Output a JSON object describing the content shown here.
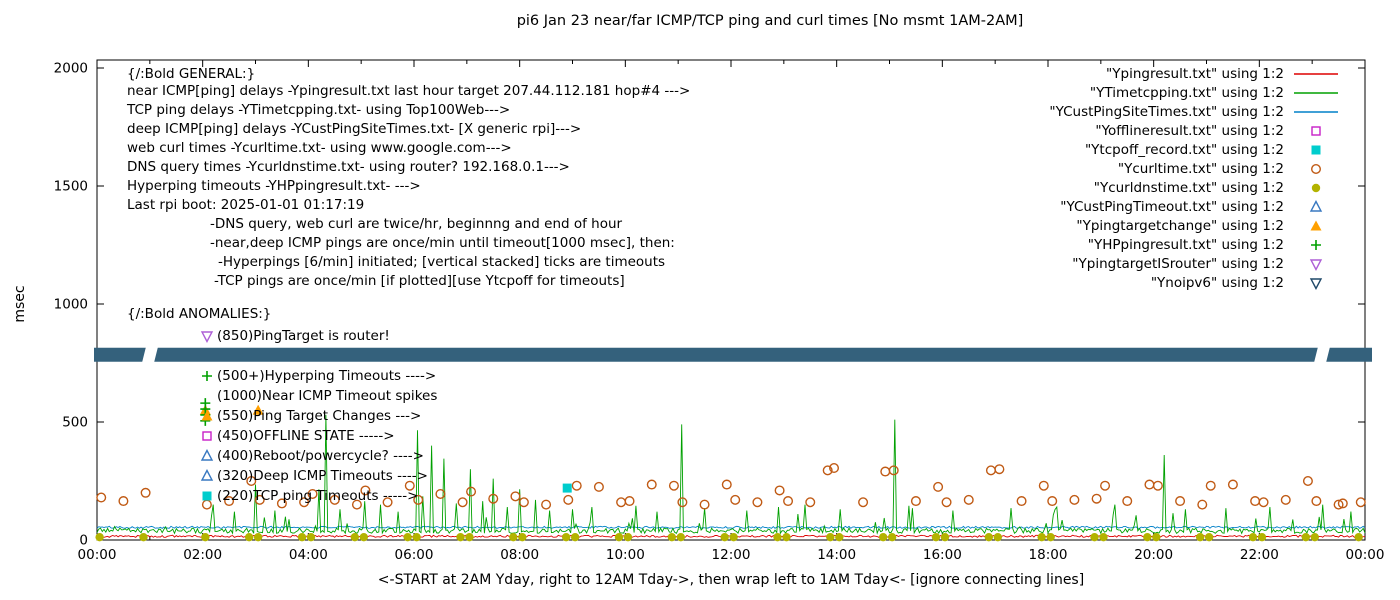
{
  "title": "pi6 Jan 23  near/far ICMP/TCP ping and curl times [No msmt 1AM-2AM]",
  "axes": {
    "ylabel": "msec",
    "xlabel": "<-START at 2AM Yday, right to 12AM Tday->, then wrap left to 1AM Tday<- [ignore connecting lines]"
  },
  "legend": [
    {
      "label": "\"Ypingresult.txt\" using 1:2",
      "sample": "line",
      "color": "#dd0000"
    },
    {
      "label": "\"YTimetcpping.txt\" using 1:2",
      "sample": "line",
      "color": "#00a000"
    },
    {
      "label": "\"YCustPingSiteTimes.txt\" using 1:2",
      "sample": "line",
      "color": "#0080c8"
    },
    {
      "label": "\"Yofflineresult.txt\" using 1:2",
      "sample": "square-open",
      "color": "#c820c8"
    },
    {
      "label": "\"Ytcpoff_record.txt\" using 1:2",
      "sample": "square-filled",
      "color": "#00cdcd"
    },
    {
      "label": "\"Ycurltime.txt\" using 1:2",
      "sample": "circle-open",
      "color": "#c05a14"
    },
    {
      "label": "\"Ycurldnstime.txt\" using 1:2",
      "sample": "circle-filled",
      "color": "#b3b300"
    },
    {
      "label": "\"YCustPingTimeout.txt\" using 1:2",
      "sample": "triangle-open",
      "color": "#3878c0"
    },
    {
      "label": "\"Ypingtargetchange\" using 1:2",
      "sample": "triangle-filled",
      "color": "#ffa000"
    },
    {
      "label": "\"YHPpingresult.txt\" using 1:2",
      "sample": "plus",
      "color": "#00a000"
    },
    {
      "label": "\"YpingtargetISrouter\" using 1:2",
      "sample": "nabla-open",
      "color": "#ad5fd6"
    },
    {
      "label": "\"Ynoipv6\" using 1:2",
      "sample": "nabla-open",
      "color": "#1f4868"
    }
  ],
  "general_notes": {
    "header": "{/:Bold GENERAL:}",
    "lines": [
      {
        "text": "near ICMP[ping] delays -Ypingresult.txt last hour target 207.44.112.181 hop#4 --->",
        "indent": 0
      },
      {
        "text": "TCP ping delays -YTimetcpping.txt- using Top100Web--->",
        "indent": 0
      },
      {
        "text": "deep ICMP[ping] delays -YCustPingSiteTimes.txt- [X generic rpi]--->",
        "indent": 0
      },
      {
        "text": "web curl times -Ycurltime.txt- using www.google.com--->",
        "indent": 0
      },
      {
        "text": "DNS query times -Ycurldnstime.txt- using router? 192.168.0.1--->",
        "indent": 0
      },
      {
        "text": "Hyperping timeouts -YHPpingresult.txt- --->",
        "indent": 0
      },
      {
        "text": "Last rpi boot: 2025-01-01 01:17:19",
        "indent": 0
      },
      {
        "text": "-DNS query, web curl are twice/hr, beginnng and end of hour",
        "indent": 83
      },
      {
        "text": "-near,deep ICMP pings are once/min until timeout[1000 msec], then:",
        "indent": 83
      },
      {
        "text": "-Hyperpings [6/min] initiated; [vertical stacked] ticks are timeouts",
        "indent": 91
      },
      {
        "text": "-TCP pings are once/min [if plotted][use Ytcpoff for timeouts]",
        "indent": 87
      }
    ]
  },
  "anomalies": {
    "header": "{/:Bold ANOMALIES:}",
    "items": [
      {
        "marker": "nabla-open",
        "color": "#ad5fd6",
        "text": "(850)PingTarget is router!"
      },
      {
        "marker": "plus",
        "color": "#00a000",
        "text": "(500+)Hyperping Timeouts ---->",
        "gap_before": true
      },
      {
        "marker": "none",
        "color": "",
        "text": "(1000)Near ICMP Timeout spikes"
      },
      {
        "marker": "triangle-filled",
        "color": "#ffa000",
        "text": "(550)Ping Target Changes --->"
      },
      {
        "marker": "square-open",
        "color": "#c820c8",
        "text": "(450)OFFLINE STATE ----->"
      },
      {
        "marker": "triangle-open",
        "color": "#3878c0",
        "text": "(400)Reboot/powercycle? ---->"
      },
      {
        "marker": "triangle-open",
        "color": "#3878c0",
        "text": "(320)Deep ICMP Timeouts ---->"
      },
      {
        "marker": "square-filled",
        "color": "#00cdcd",
        "text": "(220)TCP ping Timeouts ----->"
      }
    ]
  },
  "chart_data": {
    "type": "line+scatter",
    "title": "pi6 Jan 23  near/far ICMP/TCP ping and curl times [No msmt 1AM-2AM]",
    "ylabel": "msec",
    "ylim": [
      0,
      2000
    ],
    "x_hours": 24,
    "no_measurement_window": "01:00-02:00",
    "x_ticks": [
      "00:00",
      "02:00",
      "04:00",
      "06:00",
      "08:00",
      "10:00",
      "12:00",
      "14:00",
      "16:00",
      "18:00",
      "20:00",
      "22:00",
      "00:00"
    ],
    "y_ticks": [
      0,
      500,
      1000,
      1500,
      2000
    ],
    "series": [
      {
        "name": "Ypingresult.txt",
        "kind": "line",
        "color": "#dd0000",
        "baseline_msec": 14,
        "noise_msec": 9,
        "spikes": []
      },
      {
        "name": "YTimetcpping.txt",
        "kind": "line",
        "color": "#00a000",
        "baseline_msec": 35,
        "noise_msec": 22,
        "spikes": [
          [
            2.2,
            150
          ],
          [
            2.6,
            120
          ],
          [
            3.0,
            235
          ],
          [
            3.35,
            125
          ],
          [
            4.2,
            215
          ],
          [
            4.33,
            530
          ],
          [
            4.6,
            130
          ],
          [
            5.05,
            165
          ],
          [
            5.35,
            150
          ],
          [
            5.7,
            120
          ],
          [
            6.05,
            465
          ],
          [
            6.18,
            185
          ],
          [
            6.32,
            400
          ],
          [
            6.55,
            345
          ],
          [
            6.8,
            155
          ],
          [
            7.05,
            300
          ],
          [
            7.3,
            165
          ],
          [
            7.5,
            260
          ],
          [
            7.75,
            140
          ],
          [
            8.0,
            215
          ],
          [
            8.3,
            170
          ],
          [
            8.55,
            125
          ],
          [
            9.0,
            130
          ],
          [
            9.35,
            140
          ],
          [
            10.2,
            145
          ],
          [
            10.6,
            120
          ],
          [
            11.05,
            490
          ],
          [
            11.5,
            135
          ],
          [
            12.3,
            125
          ],
          [
            12.9,
            140
          ],
          [
            13.4,
            150
          ],
          [
            14.05,
            130
          ],
          [
            15.1,
            510
          ],
          [
            15.35,
            145
          ],
          [
            16.2,
            125
          ],
          [
            17.3,
            135
          ],
          [
            18.15,
            140
          ],
          [
            19.25,
            150
          ],
          [
            20.2,
            360
          ],
          [
            20.6,
            130
          ],
          [
            21.35,
            135
          ],
          [
            22.2,
            140
          ],
          [
            23.2,
            150
          ]
        ]
      },
      {
        "name": "YCustPingSiteTimes.txt",
        "kind": "line",
        "color": "#0080c8",
        "baseline_msec": 52,
        "noise_msec": 9,
        "spikes": []
      },
      {
        "name": "Ycurltime.txt",
        "kind": "points",
        "marker": "circle-open",
        "color": "#c05a14",
        "points": [
          [
            0.08,
            180
          ],
          [
            0.5,
            165
          ],
          [
            0.92,
            200
          ],
          [
            2.08,
            150
          ],
          [
            2.5,
            165
          ],
          [
            2.92,
            250
          ],
          [
            3.08,
            170
          ],
          [
            3.5,
            155
          ],
          [
            3.92,
            160
          ],
          [
            4.08,
            195
          ],
          [
            4.5,
            170
          ],
          [
            4.92,
            150
          ],
          [
            5.08,
            210
          ],
          [
            5.5,
            160
          ],
          [
            5.92,
            230
          ],
          [
            6.08,
            170
          ],
          [
            6.5,
            195
          ],
          [
            6.92,
            160
          ],
          [
            7.08,
            205
          ],
          [
            7.5,
            175
          ],
          [
            7.92,
            185
          ],
          [
            8.08,
            160
          ],
          [
            8.5,
            150
          ],
          [
            8.92,
            170
          ],
          [
            9.08,
            230
          ],
          [
            9.5,
            225
          ],
          [
            9.92,
            160
          ],
          [
            10.08,
            165
          ],
          [
            10.5,
            235
          ],
          [
            10.92,
            230
          ],
          [
            11.08,
            160
          ],
          [
            11.5,
            150
          ],
          [
            11.92,
            235
          ],
          [
            12.08,
            170
          ],
          [
            12.5,
            160
          ],
          [
            12.92,
            210
          ],
          [
            13.08,
            165
          ],
          [
            13.5,
            160
          ],
          [
            13.83,
            295
          ],
          [
            13.95,
            305
          ],
          [
            14.5,
            160
          ],
          [
            14.92,
            290
          ],
          [
            15.08,
            295
          ],
          [
            15.5,
            165
          ],
          [
            15.92,
            225
          ],
          [
            16.08,
            160
          ],
          [
            16.5,
            170
          ],
          [
            16.92,
            295
          ],
          [
            17.08,
            300
          ],
          [
            17.5,
            165
          ],
          [
            17.92,
            230
          ],
          [
            18.08,
            165
          ],
          [
            18.5,
            170
          ],
          [
            18.92,
            175
          ],
          [
            19.08,
            230
          ],
          [
            19.5,
            165
          ],
          [
            19.92,
            235
          ],
          [
            20.08,
            230
          ],
          [
            20.5,
            165
          ],
          [
            20.92,
            150
          ],
          [
            21.08,
            230
          ],
          [
            21.5,
            235
          ],
          [
            21.92,
            165
          ],
          [
            22.08,
            160
          ],
          [
            22.5,
            170
          ],
          [
            22.92,
            250
          ],
          [
            23.08,
            165
          ],
          [
            23.5,
            150
          ],
          [
            23.58,
            155
          ],
          [
            23.92,
            160
          ]
        ]
      },
      {
        "name": "Ycurldnstime.txt",
        "kind": "points",
        "marker": "circle-filled",
        "color": "#b3b300",
        "repeat": {
          "skip_hours": [
            1
          ],
          "offsets": [
            0.05,
            0.88
          ],
          "value_msec": 12
        }
      },
      {
        "name": "Yofflineresult.txt",
        "kind": "points",
        "marker": "square-open",
        "color": "#c820c8",
        "points": []
      },
      {
        "name": "Ytcpoff_record.txt",
        "kind": "points",
        "marker": "square-filled",
        "color": "#00cdcd",
        "points": [
          [
            8.9,
            220
          ]
        ]
      },
      {
        "name": "YCustPingTimeout.txt",
        "kind": "points",
        "marker": "triangle-open",
        "color": "#3878c0",
        "points": []
      },
      {
        "name": "Ypingtargetchange",
        "kind": "points",
        "marker": "triangle-filled",
        "color": "#ffa000",
        "points": [
          [
            2.05,
            550
          ],
          [
            3.05,
            550
          ]
        ]
      },
      {
        "name": "YHPpingresult.txt",
        "kind": "points",
        "marker": "plus",
        "color": "#00a000",
        "points": [
          [
            2.05,
            505
          ],
          [
            2.05,
            530
          ],
          [
            2.05,
            555
          ],
          [
            2.05,
            580
          ]
        ]
      },
      {
        "name": "YpingtargetISrouter",
        "kind": "points",
        "marker": "nabla-open",
        "color": "#ad5fd6",
        "points": []
      },
      {
        "name": "Ynoipv6",
        "kind": "band",
        "color": "#34617c",
        "value_msec": 785
      }
    ]
  }
}
